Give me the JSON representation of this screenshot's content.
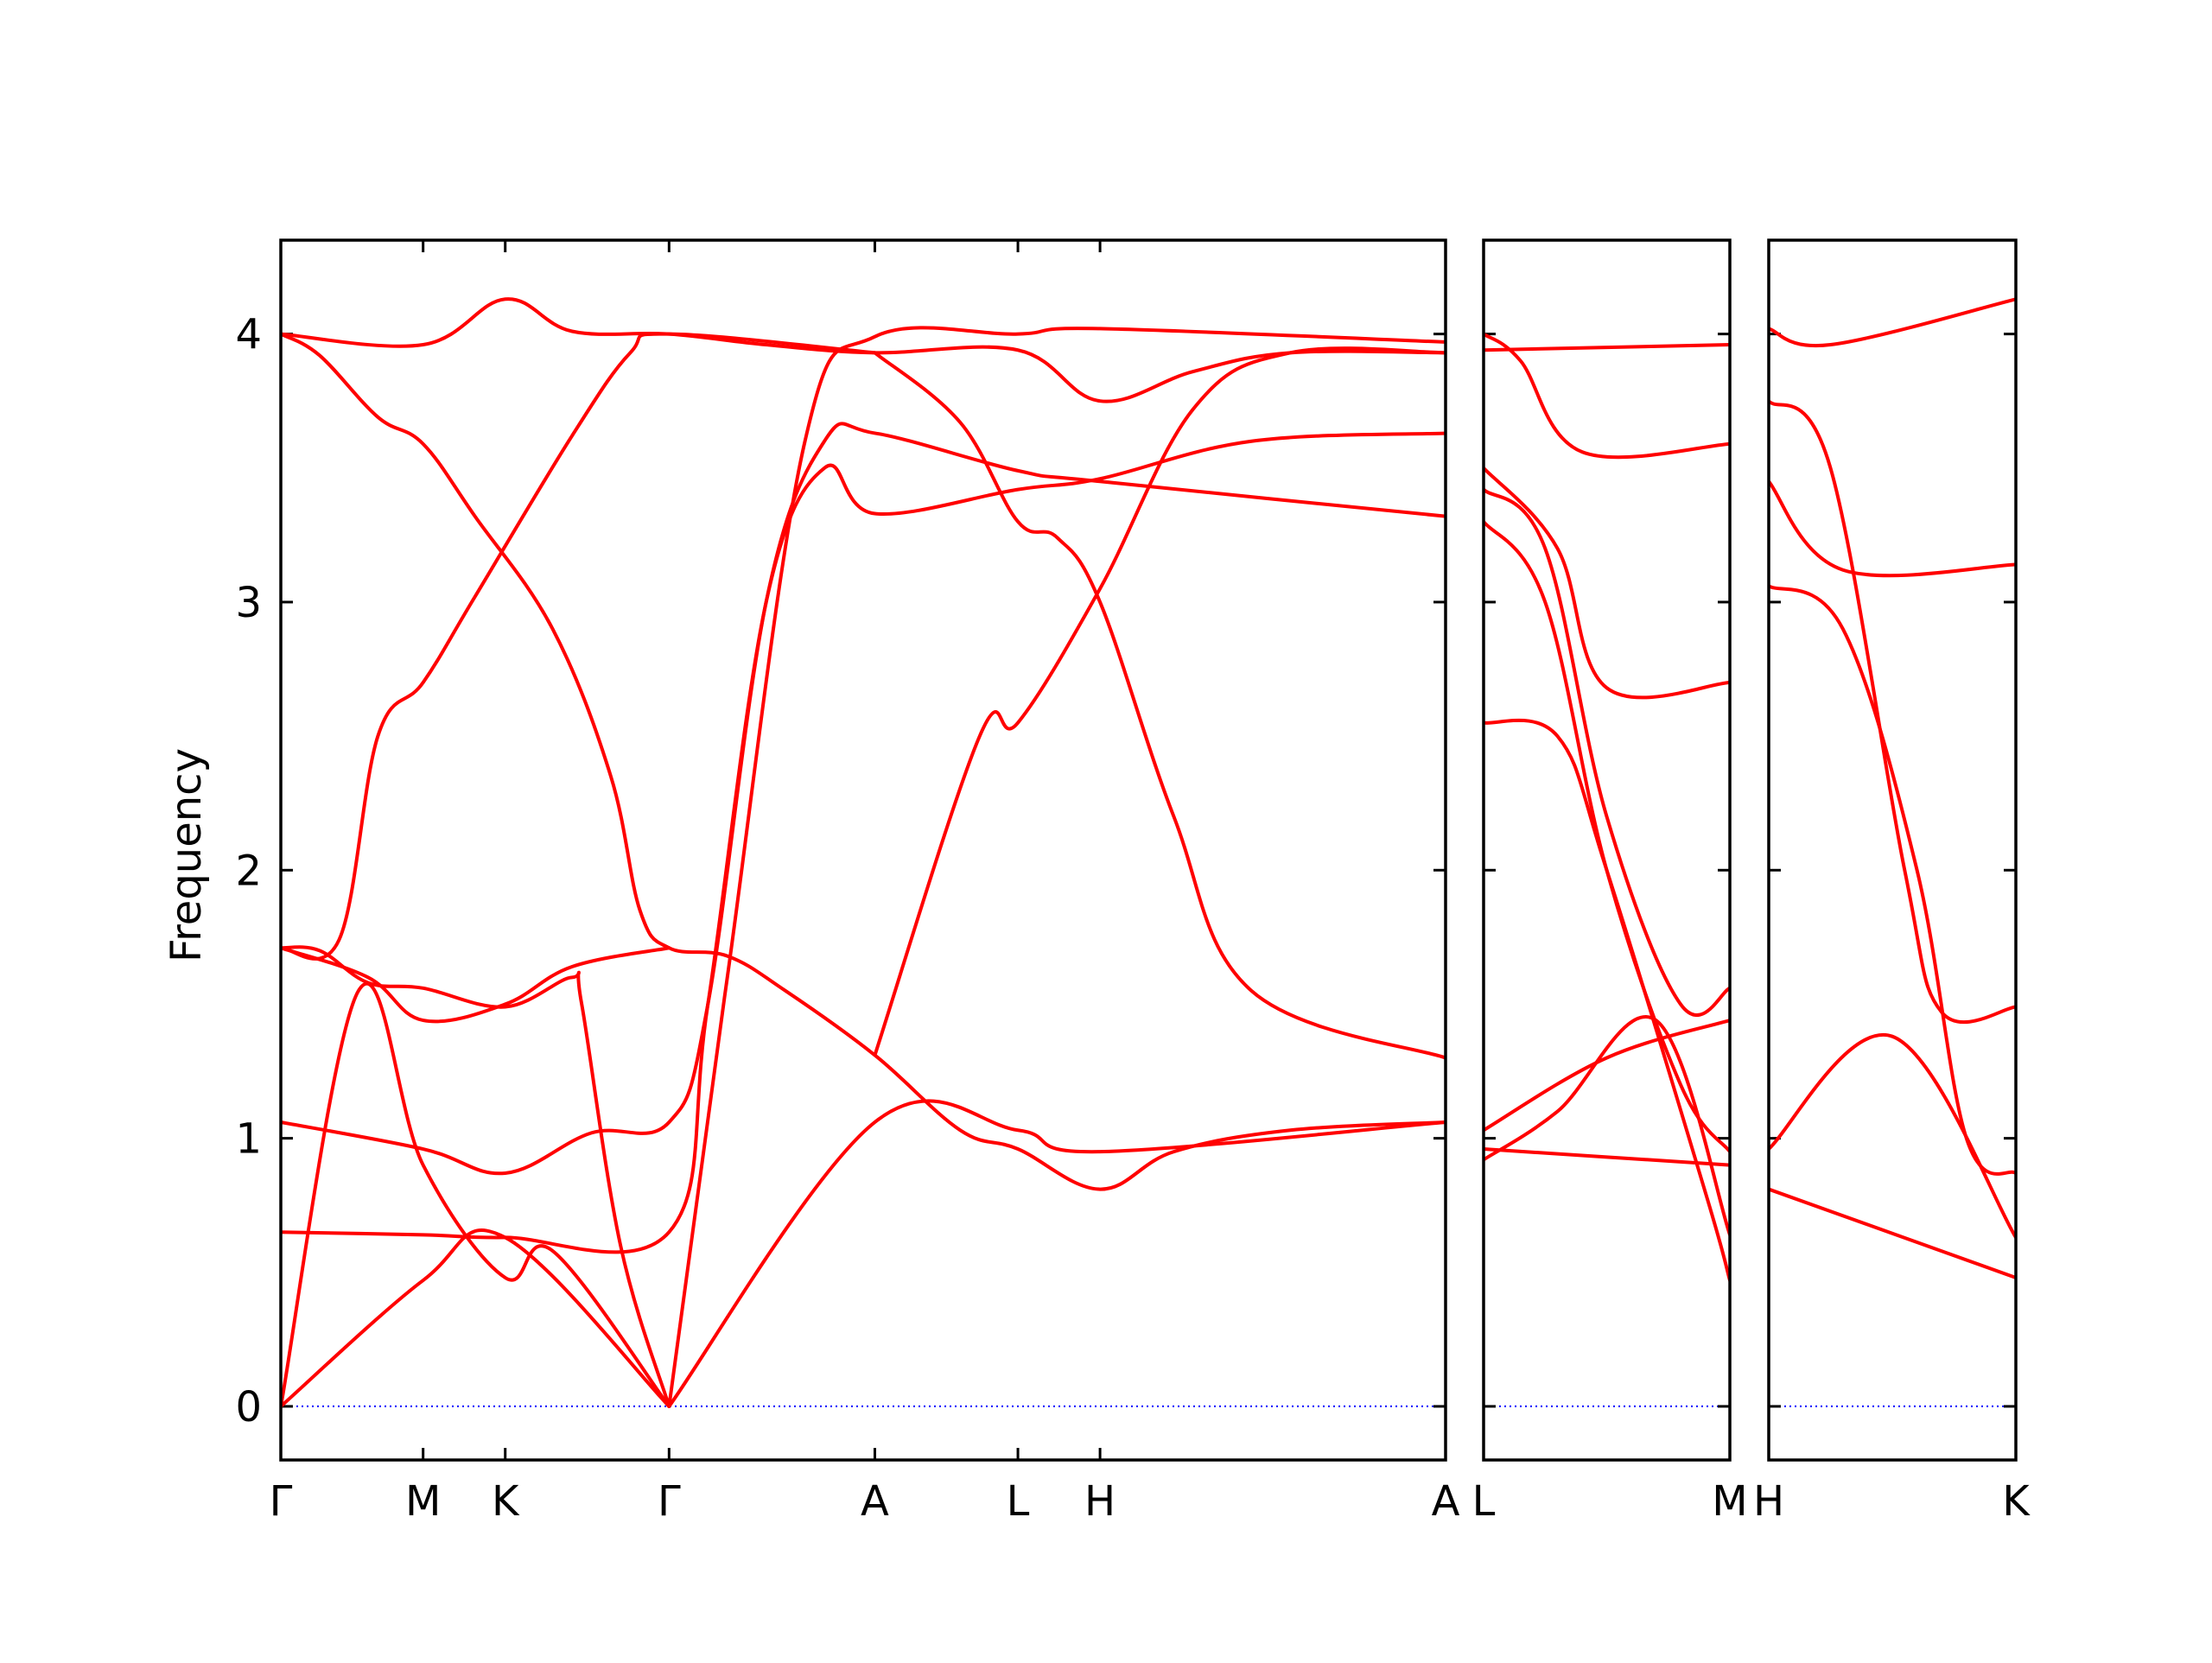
{
  "chart_data": {
    "type": "line",
    "ylabel": "Frequency",
    "ylim": [
      -0.2,
      4.35
    ],
    "yticks": [
      0,
      1,
      2,
      3,
      4
    ],
    "grid": false,
    "line_color": "#ff0000",
    "zero_line_color": "#0000ff",
    "panels": [
      {
        "id": "panel1",
        "xlim": [
          0,
          6
        ],
        "ticks": [
          {
            "x": 0,
            "label": "Γ"
          },
          {
            "x": 0.733,
            "label": "M"
          },
          {
            "x": 1.156,
            "label": "K"
          },
          {
            "x": 2.0,
            "label": "Γ"
          },
          {
            "x": 3.06,
            "label": "A"
          },
          {
            "x": 3.797,
            "label": "L"
          },
          {
            "x": 4.22,
            "label": "H"
          },
          {
            "x": 6.0,
            "label": "A"
          }
        ],
        "series": [
          {
            "points": [
              [
                0,
                4.0
              ],
              [
                0.733,
                3.96
              ],
              [
                1.156,
                4.13
              ],
              [
                1.5,
                4.01
              ],
              [
                2.0,
                4.0
              ],
              [
                2.5,
                3.96
              ],
              [
                3.06,
                3.93
              ],
              [
                3.797,
                3.94
              ],
              [
                4.22,
                3.75
              ],
              [
                4.7,
                3.86
              ],
              [
                5.2,
                3.93
              ],
              [
                6.0,
                3.93
              ]
            ]
          },
          {
            "points": [
              [
                0,
                4.0
              ],
              [
                0.2,
                3.92
              ],
              [
                0.5,
                3.69
              ],
              [
                0.733,
                3.59
              ],
              [
                1.0,
                3.32
              ],
              [
                1.4,
                2.9
              ],
              [
                1.7,
                2.35
              ],
              [
                1.85,
                1.85
              ],
              [
                2.0,
                1.71
              ],
              [
                2.3,
                1.68
              ],
              [
                2.6,
                1.55
              ],
              [
                3.06,
                1.31
              ],
              [
                3.5,
                1.03
              ],
              [
                3.797,
                0.96
              ],
              [
                4.22,
                0.81
              ],
              [
                4.6,
                0.95
              ],
              [
                5.2,
                1.03
              ],
              [
                6.0,
                1.06
              ]
            ]
          },
          {
            "points": [
              [
                0,
                1.71
              ],
              [
                0.3,
                1.74
              ],
              [
                0.5,
                2.5
              ],
              [
                0.733,
                2.7
              ],
              [
                1.0,
                3.02
              ],
              [
                1.5,
                3.62
              ],
              [
                1.8,
                3.93
              ],
              [
                2.0,
                4.0
              ],
              [
                3.06,
                3.93
              ]
            ]
          },
          {
            "points": [
              [
                0,
                1.71
              ],
              [
                0.2,
                1.7
              ],
              [
                0.45,
                1.58
              ],
              [
                0.733,
                1.56
              ],
              [
                1.156,
                1.49
              ],
              [
                1.5,
                1.6
              ],
              [
                1.55,
                1.5
              ],
              [
                1.75,
                0.6
              ],
              [
                2.0,
                0.0
              ]
            ]
          },
          {
            "points": [
              [
                0,
                1.71
              ],
              [
                0.45,
                1.6
              ],
              [
                0.733,
                1.44
              ],
              [
                1.156,
                1.5
              ],
              [
                1.5,
                1.64
              ],
              [
                2.0,
                1.71
              ]
            ]
          },
          {
            "points": [
              [
                0,
                1.06
              ],
              [
                0.733,
                0.96
              ],
              [
                1.156,
                0.87
              ],
              [
                1.6,
                1.02
              ],
              [
                2.0,
                1.06
              ],
              [
                2.2,
                1.5
              ],
              [
                2.5,
                3.0
              ],
              [
                2.8,
                3.6
              ],
              [
                3.06,
                3.63
              ],
              [
                3.797,
                3.49
              ],
              [
                4.22,
                3.45
              ],
              [
                6.0,
                3.32
              ]
            ]
          },
          {
            "points": [
              [
                0,
                0.65
              ],
              [
                0.733,
                0.64
              ],
              [
                1.156,
                0.63
              ],
              [
                2.0,
                0.65
              ],
              [
                2.2,
                1.5
              ],
              [
                2.5,
                3.0
              ],
              [
                2.8,
                3.5
              ],
              [
                3.06,
                3.33
              ],
              [
                3.797,
                3.42
              ],
              [
                4.22,
                3.46
              ],
              [
                5.0,
                3.6
              ],
              [
                6.0,
                3.63
              ]
            ]
          },
          {
            "points": [
              [
                0,
                0.0
              ],
              [
                0.4,
                1.55
              ],
              [
                0.733,
                0.9
              ],
              [
                1.156,
                0.48
              ],
              [
                1.4,
                0.58
              ],
              [
                2.0,
                0.0
              ]
            ]
          },
          {
            "points": [
              [
                0,
                0.0
              ],
              [
                0.733,
                0.47
              ],
              [
                1.156,
                0.63
              ],
              [
                2.0,
                0.0
              ]
            ]
          },
          {
            "points": [
              [
                2.0,
                0.0
              ],
              [
                2.3,
                1.6
              ],
              [
                2.7,
                3.6
              ],
              [
                3.06,
                3.99
              ],
              [
                3.797,
                4.0
              ],
              [
                4.22,
                4.02
              ],
              [
                6.0,
                3.97
              ]
            ]
          },
          {
            "points": [
              [
                2.0,
                0.0
              ],
              [
                3.06,
                1.06
              ],
              [
                3.797,
                1.03
              ],
              [
                4.22,
                0.95
              ],
              [
                6.0,
                1.06
              ]
            ]
          },
          {
            "points": [
              [
                3.06,
                1.31
              ],
              [
                3.6,
                2.5
              ],
              [
                3.797,
                2.55
              ],
              [
                4.22,
                3.05
              ],
              [
                4.7,
                3.72
              ],
              [
                5.2,
                3.93
              ],
              [
                6.0,
                3.93
              ]
            ]
          },
          {
            "points": [
              [
                3.06,
                3.93
              ],
              [
                3.5,
                3.67
              ],
              [
                3.797,
                3.3
              ],
              [
                4.0,
                3.24
              ],
              [
                4.22,
                3.0
              ],
              [
                4.6,
                2.2
              ],
              [
                5.0,
                1.55
              ],
              [
                6.0,
                1.3
              ]
            ]
          }
        ]
      },
      {
        "id": "panel2",
        "xlim": [
          0,
          1
        ],
        "ticks": [
          {
            "x": 0,
            "label": "L"
          },
          {
            "x": 1,
            "label": "M"
          }
        ],
        "series": [
          {
            "points": [
              [
                0,
                3.94
              ],
              [
                1,
                3.96
              ]
            ]
          },
          {
            "points": [
              [
                0,
                4.0
              ],
              [
                0.15,
                3.9
              ],
              [
                0.4,
                3.56
              ],
              [
                1,
                3.59
              ]
            ]
          },
          {
            "points": [
              [
                0,
                3.5
              ],
              [
                0.3,
                3.2
              ],
              [
                0.5,
                2.68
              ],
              [
                1,
                2.7
              ]
            ]
          },
          {
            "points": [
              [
                0,
                3.42
              ],
              [
                0.25,
                3.2
              ],
              [
                0.5,
                2.2
              ],
              [
                0.8,
                1.5
              ],
              [
                1,
                1.56
              ]
            ]
          },
          {
            "points": [
              [
                0,
                3.3
              ],
              [
                0.25,
                3.0
              ],
              [
                0.5,
                2.0
              ],
              [
                0.8,
                1.2
              ],
              [
                1,
                0.95
              ]
            ]
          },
          {
            "points": [
              [
                0,
                2.55
              ],
              [
                0.3,
                2.5
              ],
              [
                0.5,
                2.0
              ],
              [
                0.9,
                0.8
              ],
              [
                1,
                0.47
              ]
            ]
          },
          {
            "points": [
              [
                0,
                1.03
              ],
              [
                0.5,
                1.3
              ],
              [
                1,
                1.44
              ]
            ]
          },
          {
            "points": [
              [
                0,
                0.96
              ],
              [
                1,
                0.9
              ]
            ]
          },
          {
            "points": [
              [
                0,
                0.92
              ],
              [
                0.3,
                1.1
              ],
              [
                0.7,
                1.44
              ],
              [
                1,
                0.64
              ]
            ]
          }
        ]
      },
      {
        "id": "panel3",
        "xlim": [
          0,
          1
        ],
        "ticks": [
          {
            "x": 0,
            "label": "H"
          },
          {
            "x": 1,
            "label": "K"
          }
        ],
        "series": [
          {
            "points": [
              [
                0,
                4.02
              ],
              [
                0.25,
                3.96
              ],
              [
                1,
                4.13
              ]
            ]
          },
          {
            "points": [
              [
                0,
                3.75
              ],
              [
                0.25,
                3.5
              ],
              [
                0.55,
                2.0
              ],
              [
                0.7,
                1.47
              ],
              [
                1,
                1.49
              ]
            ]
          },
          {
            "points": [
              [
                0,
                3.45
              ],
              [
                0.3,
                3.12
              ],
              [
                1,
                3.14
              ]
            ]
          },
          {
            "points": [
              [
                0,
                3.06
              ],
              [
                0.3,
                2.9
              ],
              [
                0.6,
                2.0
              ],
              [
                0.8,
                1.0
              ],
              [
                1,
                0.87
              ]
            ]
          },
          {
            "points": [
              [
                0,
                0.96
              ],
              [
                0.5,
                1.38
              ],
              [
                1,
                0.63
              ]
            ]
          },
          {
            "points": [
              [
                0,
                0.81
              ],
              [
                1,
                0.48
              ]
            ]
          }
        ]
      }
    ]
  }
}
